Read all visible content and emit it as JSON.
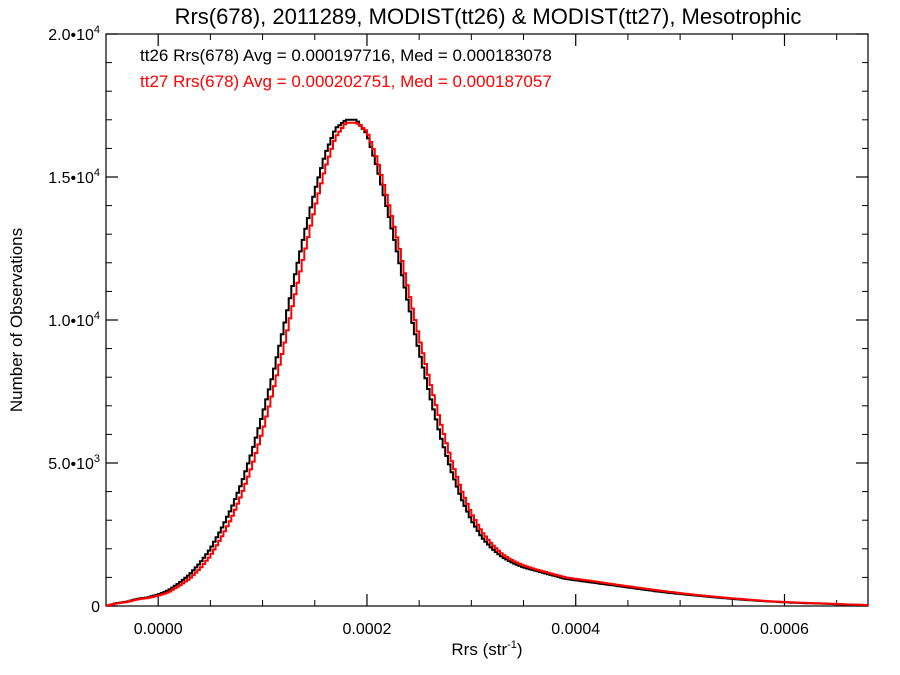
{
  "chart_data": {
    "type": "line",
    "title": "Rrs(678), 2011289, MODIST(tt26) & MODIST(tt27), Mesotrophic",
    "xlabel": "Rrs (str",
    "xlabel_sup": "-1",
    "xlabel_end": ")",
    "ylabel": "Number of Observations",
    "xlim": [
      -5e-05,
      0.00068
    ],
    "ylim": [
      0,
      20000
    ],
    "x_ticks": [
      {
        "value": 0.0,
        "label": "0.0000"
      },
      {
        "value": 0.0002,
        "label": "0.0002"
      },
      {
        "value": 0.0004,
        "label": "0.0004"
      },
      {
        "value": 0.0006,
        "label": "0.0006"
      }
    ],
    "y_ticks": [
      {
        "value": 0,
        "base": "0",
        "exp": ""
      },
      {
        "value": 5000,
        "base": "5.0•10",
        "exp": "3"
      },
      {
        "value": 10000,
        "base": "1.0•10",
        "exp": "4"
      },
      {
        "value": 15000,
        "base": "1.5•10",
        "exp": "4"
      },
      {
        "value": 20000,
        "base": "2.0•10",
        "exp": "4"
      }
    ],
    "annotations": [
      {
        "text": "tt26 Rrs(678) Avg = 0.000197716, Med = 0.000183078",
        "color": "#000000"
      },
      {
        "text": "tt27 Rrs(678) Avg = 0.000202751, Med = 0.000187057",
        "color": "#ff0000"
      }
    ],
    "series": [
      {
        "color": "#000000",
        "points": [
          [
            -5e-05,
            0
          ],
          [
            -4e-05,
            100
          ],
          [
            -3e-05,
            150
          ],
          [
            -2e-05,
            250
          ],
          [
            -1e-05,
            300
          ],
          [
            0.0,
            400
          ],
          [
            1e-05,
            550
          ],
          [
            2e-05,
            800
          ],
          [
            3e-05,
            1100
          ],
          [
            4e-05,
            1500
          ],
          [
            5e-05,
            2000
          ],
          [
            6e-05,
            2650
          ],
          [
            7e-05,
            3400
          ],
          [
            8e-05,
            4300
          ],
          [
            9e-05,
            5400
          ],
          [
            0.0001,
            6700
          ],
          [
            0.00011,
            8100
          ],
          [
            0.00012,
            9700
          ],
          [
            0.00013,
            11400
          ],
          [
            0.00014,
            13000
          ],
          [
            0.00015,
            14500
          ],
          [
            0.00016,
            15800
          ],
          [
            0.00017,
            16700
          ],
          [
            0.00018,
            17000
          ],
          [
            0.00019,
            17000
          ],
          [
            0.0002,
            16500
          ],
          [
            0.00021,
            15300
          ],
          [
            0.00022,
            13800
          ],
          [
            0.00023,
            12200
          ],
          [
            0.00024,
            10500
          ],
          [
            0.00025,
            8900
          ],
          [
            0.00026,
            7400
          ],
          [
            0.00027,
            6000
          ],
          [
            0.00028,
            4800
          ],
          [
            0.00029,
            3800
          ],
          [
            0.0003,
            3000
          ],
          [
            0.00031,
            2400
          ],
          [
            0.00032,
            2000
          ],
          [
            0.00033,
            1700
          ],
          [
            0.00034,
            1500
          ],
          [
            0.00035,
            1350
          ],
          [
            0.00036,
            1250
          ],
          [
            0.00037,
            1150
          ],
          [
            0.00038,
            1050
          ],
          [
            0.00039,
            950
          ],
          [
            0.0004,
            900
          ],
          [
            0.00042,
            800
          ],
          [
            0.00044,
            700
          ],
          [
            0.00046,
            600
          ],
          [
            0.00048,
            500
          ],
          [
            0.0005,
            420
          ],
          [
            0.00052,
            350
          ],
          [
            0.00054,
            280
          ],
          [
            0.00056,
            220
          ],
          [
            0.00058,
            170
          ],
          [
            0.0006,
            130
          ],
          [
            0.00062,
            100
          ],
          [
            0.00064,
            80
          ],
          [
            0.00066,
            50
          ],
          [
            0.00068,
            30
          ]
        ]
      },
      {
        "color": "#ff0000",
        "points": [
          [
            -5e-05,
            0
          ],
          [
            -4e-05,
            90
          ],
          [
            -3e-05,
            140
          ],
          [
            -2e-05,
            230
          ],
          [
            -1e-05,
            280
          ],
          [
            0.0,
            360
          ],
          [
            1e-05,
            480
          ],
          [
            2e-05,
            700
          ],
          [
            3e-05,
            950
          ],
          [
            4e-05,
            1300
          ],
          [
            5e-05,
            1750
          ],
          [
            6e-05,
            2350
          ],
          [
            7e-05,
            3050
          ],
          [
            8e-05,
            3900
          ],
          [
            9e-05,
            4900
          ],
          [
            0.0001,
            6100
          ],
          [
            0.00011,
            7500
          ],
          [
            0.00012,
            9000
          ],
          [
            0.00013,
            10700
          ],
          [
            0.00014,
            12300
          ],
          [
            0.00015,
            13900
          ],
          [
            0.00016,
            15300
          ],
          [
            0.00017,
            16400
          ],
          [
            0.00018,
            16900
          ],
          [
            0.00019,
            16900
          ],
          [
            0.0002,
            16600
          ],
          [
            0.00021,
            15600
          ],
          [
            0.00022,
            14200
          ],
          [
            0.00023,
            12700
          ],
          [
            0.00024,
            11000
          ],
          [
            0.00025,
            9400
          ],
          [
            0.00026,
            7900
          ],
          [
            0.00027,
            6500
          ],
          [
            0.00028,
            5200
          ],
          [
            0.00029,
            4100
          ],
          [
            0.0003,
            3250
          ],
          [
            0.00031,
            2600
          ],
          [
            0.00032,
            2150
          ],
          [
            0.00033,
            1800
          ],
          [
            0.00034,
            1580
          ],
          [
            0.00035,
            1420
          ],
          [
            0.00036,
            1300
          ],
          [
            0.00037,
            1200
          ],
          [
            0.00038,
            1100
          ],
          [
            0.00039,
            1000
          ],
          [
            0.0004,
            950
          ],
          [
            0.00042,
            850
          ],
          [
            0.00044,
            740
          ],
          [
            0.00046,
            640
          ],
          [
            0.00048,
            540
          ],
          [
            0.0005,
            450
          ],
          [
            0.00052,
            370
          ],
          [
            0.00054,
            300
          ],
          [
            0.00056,
            240
          ],
          [
            0.00058,
            180
          ],
          [
            0.0006,
            140
          ],
          [
            0.00062,
            110
          ],
          [
            0.00064,
            85
          ],
          [
            0.00066,
            55
          ],
          [
            0.00068,
            35
          ]
        ]
      }
    ]
  }
}
